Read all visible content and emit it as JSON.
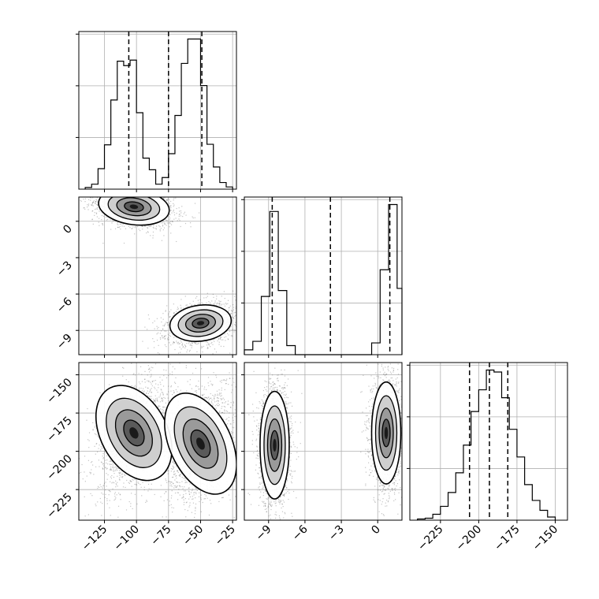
{
  "chart_data": {
    "type": "corner",
    "title": "",
    "parameters": [
      {
        "name": "",
        "range": [
          -145,
          -22
        ],
        "ticks": [
          -125,
          -100,
          -75,
          -50,
          -25
        ],
        "tick_labels": [
          "−125",
          "−100",
          "−75",
          "−50",
          "−25"
        ],
        "quantiles": [
          -106,
          -75,
          -49
        ],
        "hist_bin_edges": [
          -140,
          -135,
          -130,
          -125,
          -120,
          -115,
          -110,
          -105,
          -100,
          -95,
          -90,
          -85,
          -80,
          -75,
          -70,
          -65,
          -60,
          -55,
          -50,
          -45,
          -40,
          -35,
          -30,
          -25
        ],
        "hist_counts": [
          3,
          9,
          37,
          80,
          161,
          231,
          223,
          233,
          138,
          56,
          35,
          9,
          21,
          64,
          133,
          227,
          271,
          271,
          187,
          81,
          40,
          12,
          4
        ]
      },
      {
        "name": "",
        "range": [
          -11.0,
          2.0
        ],
        "ticks": [
          -9,
          -6,
          -3,
          0
        ],
        "tick_labels": [
          "−9",
          "−6",
          "−3",
          "0"
        ],
        "quantiles": [
          -8.7,
          -3.9,
          1.0
        ],
        "hist_bin_edges": [
          -11.0,
          -10.3,
          -9.6,
          -8.9,
          -8.2,
          -7.5,
          -6.8,
          -0.5,
          0.2,
          0.9,
          1.6,
          2.0
        ],
        "hist_counts": [
          9,
          25,
          109,
          268,
          120,
          17,
          0,
          22,
          159,
          281,
          124
        ]
      },
      {
        "name": "",
        "range": [
          -245,
          -142
        ],
        "ticks": [
          -225,
          -200,
          -175,
          -150
        ],
        "tick_labels": [
          "−225",
          "−200",
          "−175",
          "−150"
        ],
        "quantiles": [
          -206,
          -193,
          -181
        ],
        "hist_bin_edges": [
          -240,
          -235,
          -230,
          -225,
          -220,
          -215,
          -210,
          -205,
          -200,
          -195,
          -190,
          -185,
          -180,
          -175,
          -170,
          -165,
          -160,
          -155,
          -150
        ],
        "hist_counts": [
          3,
          5,
          15,
          35,
          70,
          120,
          190,
          275,
          330,
          380,
          375,
          310,
          230,
          160,
          90,
          50,
          25,
          8
        ]
      }
    ],
    "modes_2d": {
      "p0_p1": [
        {
          "center": [
            -102,
            1.2
          ],
          "spread": [
            15,
            0.8
          ],
          "corr": -0.3
        },
        {
          "center": [
            -50,
            -8.4
          ],
          "spread": [
            13,
            0.8
          ],
          "corr": 0.25
        }
      ],
      "p0_p2": [
        {
          "center": [
            -102,
            -188
          ],
          "spread": [
            14,
            18
          ],
          "corr": 0.4
        },
        {
          "center": [
            -50,
            -195
          ],
          "spread": [
            13,
            19
          ],
          "corr": 0.3
        }
      ],
      "p1_p2": [
        {
          "center": [
            -8.5,
            -196
          ],
          "spread": [
            0.65,
            19
          ],
          "corr": 0.0
        },
        {
          "center": [
            0.7,
            -188
          ],
          "spread": [
            0.65,
            18
          ],
          "corr": 0.0
        }
      ]
    },
    "grid": true,
    "legend": "none"
  }
}
